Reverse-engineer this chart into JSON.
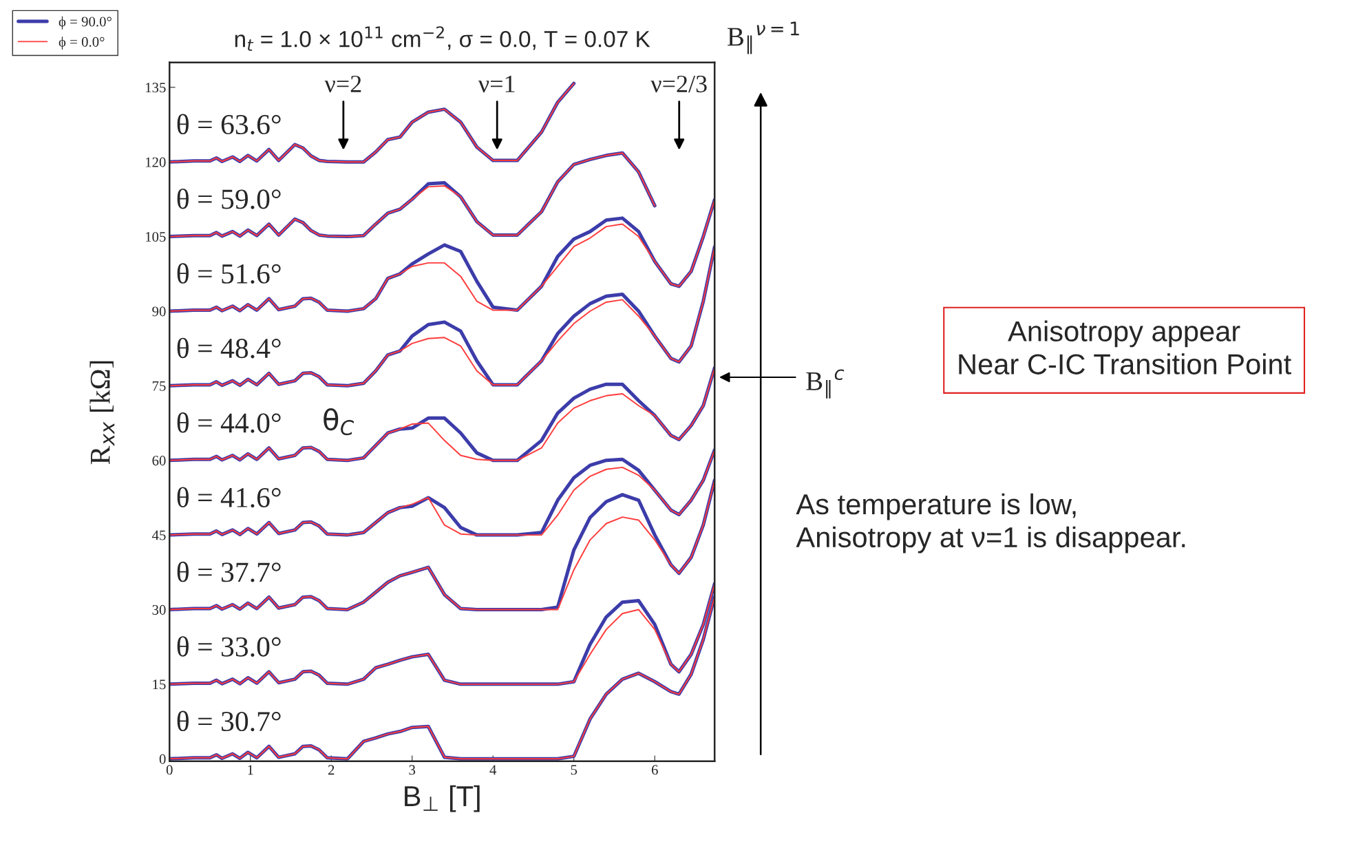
{
  "chart_data": {
    "type": "line",
    "title": "n$_{t}$ = 1.0 × 10$^{11}$ cm$^{−2}$, σ = 0.0, T = 0.07 K",
    "xlabel": "B$_{⊥}$ [T]",
    "ylabel": "R$_{xx}$ [kΩ]",
    "x": [
      0,
      0.3,
      0.5,
      0.58,
      0.65,
      0.78,
      0.87,
      0.97,
      1.08,
      1.23,
      1.35,
      1.55,
      1.65,
      1.75,
      1.85,
      1.95,
      2.2,
      2.4,
      2.55,
      2.7,
      2.85,
      3.0,
      3.2,
      3.4,
      3.6,
      3.8,
      4.0,
      4.3,
      4.6,
      4.8,
      5.0,
      5.2,
      5.4,
      5.6,
      5.8,
      6.0,
      6.2,
      6.3,
      6.45,
      6.6,
      6.74
    ],
    "xlim": [
      0,
      6.74
    ],
    "ylim": [
      -0.5,
      140
    ],
    "xticks": [
      0,
      1,
      2,
      3,
      4,
      5,
      6
    ],
    "yticks": [
      0,
      15,
      30,
      45,
      60,
      75,
      90,
      105,
      120,
      135
    ],
    "legend": "top left",
    "line_style": "solid",
    "series": [
      {
        "name": "ϕ = 0.0°",
        "color": "#ff3b3b",
        "values": [
          120,
          120.2,
          120.2,
          120.8,
          120.1,
          121,
          120.1,
          121.3,
          120.2,
          122.5,
          120.3,
          123.5,
          122.8,
          121.2,
          120.3,
          120.1,
          120,
          120,
          122,
          124.5,
          125,
          128,
          130,
          130.6,
          128,
          123,
          120.3,
          120.3,
          126,
          132,
          135.8,
          null,
          null,
          null,
          null,
          null,
          null,
          null,
          null,
          null,
          null
        ]
      },
      {
        "name": "ϕ = 90.0°",
        "color": "#3c3caa",
        "values": [
          120,
          120.2,
          120.2,
          120.8,
          120.1,
          121,
          120.1,
          121.3,
          120.2,
          122.5,
          120.3,
          123.5,
          122.8,
          121.2,
          120.3,
          120.1,
          120,
          120,
          122,
          124.5,
          125,
          128,
          130,
          130.6,
          128,
          123,
          120.3,
          120.3,
          126,
          132,
          135.8,
          null,
          null,
          null,
          null,
          null,
          null,
          null,
          null,
          null,
          null
        ]
      },
      {
        "color": "#ff3b3b",
        "values": [
          105,
          105.2,
          105.2,
          105.8,
          105.1,
          106,
          105.1,
          106.3,
          105.2,
          107.5,
          105.3,
          108.5,
          107.8,
          106.2,
          105.3,
          105.1,
          105,
          105.2,
          107.5,
          109.7,
          110.5,
          112.5,
          115,
          115.2,
          113,
          108,
          105.3,
          105.3,
          110,
          116,
          119.5,
          120.5,
          121.3,
          121.8,
          118,
          111.2,
          null,
          null,
          null,
          null,
          null
        ]
      },
      {
        "color": "#3c3caa",
        "values": [
          105,
          105.2,
          105.2,
          105.8,
          105.1,
          106,
          105.1,
          106.3,
          105.2,
          107.5,
          105.3,
          108.5,
          107.8,
          106.2,
          105.3,
          105.1,
          105,
          105.2,
          107.5,
          109.7,
          110.5,
          112.5,
          115.6,
          115.8,
          113,
          108,
          105.3,
          105.3,
          110,
          116,
          119.5,
          120.5,
          121.3,
          121.8,
          118,
          111.2,
          null,
          null,
          null,
          null,
          null
        ]
      },
      {
        "color": "#ff3b3b",
        "values": [
          90,
          90.2,
          90.2,
          90.8,
          90.1,
          91,
          90.1,
          91.3,
          90.2,
          92.5,
          90.3,
          91,
          92.5,
          92.6,
          91.8,
          90.2,
          90,
          90.5,
          92.5,
          96.6,
          97.5,
          99,
          99.7,
          99.7,
          97,
          92,
          90.2,
          90.2,
          95,
          99,
          103,
          104.7,
          107,
          107.5,
          105,
          100,
          95.5,
          95,
          98,
          105,
          112.4
        ]
      },
      {
        "color": "#3c3caa",
        "values": [
          90,
          90.2,
          90.2,
          90.8,
          90.1,
          91,
          90.1,
          91.3,
          90.2,
          92.5,
          90.3,
          91,
          92.5,
          92.6,
          91.8,
          90.2,
          90,
          90.5,
          92.5,
          96.6,
          97.5,
          99.5,
          101.5,
          103.3,
          102,
          96,
          90.8,
          90.2,
          95,
          101,
          104.5,
          106,
          108.3,
          108.7,
          106,
          100,
          95.5,
          95,
          98,
          105,
          112.4
        ]
      },
      {
        "color": "#ff3b3b",
        "values": [
          75,
          75.2,
          75.2,
          75.8,
          75.1,
          76,
          75.1,
          76.3,
          75.2,
          77.5,
          75.3,
          76,
          77.5,
          77.6,
          76.8,
          75.2,
          75,
          75.5,
          78,
          81.2,
          82,
          83.5,
          84.5,
          84.7,
          83,
          78,
          75.2,
          75.2,
          80,
          84,
          87.5,
          90,
          91.8,
          92.3,
          89,
          85,
          80.5,
          79.8,
          83,
          92,
          102.9
        ]
      },
      {
        "color": "#3c3caa",
        "values": [
          75,
          75.2,
          75.2,
          75.8,
          75.1,
          76,
          75.1,
          76.3,
          75.2,
          77.5,
          75.3,
          76,
          77.5,
          77.6,
          76.8,
          75.2,
          75,
          75.5,
          78,
          81.2,
          82,
          85,
          87.3,
          87.8,
          86,
          80,
          75.2,
          75.2,
          80,
          85.5,
          89,
          91.5,
          93,
          93.4,
          90,
          85,
          80.5,
          79.8,
          83,
          92,
          102.9
        ]
      },
      {
        "color": "#ff3b3b",
        "values": [
          60,
          60.2,
          60.2,
          60.8,
          60.1,
          61,
          60.1,
          61.3,
          60.2,
          62.5,
          60.3,
          61,
          62.5,
          62.6,
          61.8,
          60.2,
          60,
          60.5,
          63,
          65.5,
          66.3,
          67.3,
          67.5,
          64,
          61,
          60.2,
          60,
          60,
          62.5,
          67.5,
          70.5,
          72,
          73,
          73.4,
          71,
          69,
          65,
          64.2,
          67,
          71,
          78.6
        ]
      },
      {
        "color": "#3c3caa",
        "values": [
          60,
          60.2,
          60.2,
          60.8,
          60.1,
          61,
          60.1,
          61.3,
          60.2,
          62.5,
          60.3,
          61,
          62.5,
          62.6,
          61.8,
          60.2,
          60,
          60.5,
          63,
          65.5,
          66.3,
          66.5,
          68.5,
          68.5,
          65.5,
          61.5,
          60,
          60,
          64,
          69.5,
          72.5,
          74.3,
          75.3,
          75.3,
          72,
          69,
          65,
          64.2,
          67,
          71,
          78.6
        ]
      },
      {
        "color": "#ff3b3b",
        "values": [
          45,
          45.2,
          45.2,
          45.8,
          45.1,
          46,
          45.1,
          46.3,
          45.2,
          47.5,
          45.3,
          46,
          47.5,
          47.6,
          46.8,
          45.2,
          45,
          45.5,
          47.5,
          49.5,
          50.5,
          51.2,
          52.5,
          47,
          45.2,
          45,
          45,
          45,
          45,
          49,
          54,
          56.8,
          58.2,
          58.6,
          57,
          54,
          50,
          49.1,
          52,
          56,
          62.1
        ]
      },
      {
        "color": "#3c3caa",
        "values": [
          45,
          45.2,
          45.2,
          45.8,
          45.1,
          46,
          45.1,
          46.3,
          45.2,
          47.5,
          45.3,
          46,
          47.5,
          47.6,
          46.8,
          45.2,
          45,
          45.5,
          47.5,
          49.5,
          50.5,
          50.8,
          52.5,
          50.5,
          46.5,
          45,
          45,
          45,
          45.5,
          52,
          56.5,
          59,
          60,
          60.2,
          58,
          54,
          50,
          49.1,
          52,
          56,
          62.1
        ]
      },
      {
        "color": "#ff3b3b",
        "values": [
          30,
          30.2,
          30.2,
          30.8,
          30.1,
          31,
          30.1,
          31.3,
          30.2,
          32.5,
          30.3,
          31,
          32.5,
          32.6,
          31.8,
          30.2,
          30,
          31.5,
          33.5,
          35.5,
          36.8,
          37.5,
          38.5,
          33,
          30.2,
          30,
          30,
          30,
          30,
          30,
          38,
          44,
          47.3,
          48.6,
          48,
          44,
          39,
          37.3,
          40.5,
          47,
          56
        ]
      },
      {
        "color": "#3c3caa",
        "values": [
          30,
          30.2,
          30.2,
          30.8,
          30.1,
          31,
          30.1,
          31.3,
          30.2,
          32.5,
          30.3,
          31,
          32.5,
          32.6,
          31.8,
          30.2,
          30,
          31.5,
          33.5,
          35.5,
          36.8,
          37.5,
          38.5,
          33,
          30.2,
          30,
          30,
          30,
          30,
          30.5,
          42,
          48.5,
          51.7,
          53.1,
          52,
          45,
          39,
          37.3,
          40.5,
          47,
          56
        ]
      },
      {
        "color": "#ff3b3b",
        "values": [
          15,
          15.2,
          15.2,
          15.8,
          15.1,
          16,
          15.1,
          16.3,
          15.2,
          17.5,
          15.3,
          16,
          17.5,
          17.6,
          16.8,
          15.2,
          15,
          16,
          18.3,
          19,
          19.8,
          20.5,
          21,
          15.8,
          15,
          15,
          15,
          15,
          15,
          15,
          15.5,
          21,
          26,
          29.2,
          30,
          26,
          19,
          17.5,
          21,
          27,
          35.2
        ]
      },
      {
        "color": "#3c3caa",
        "values": [
          15,
          15.2,
          15.2,
          15.8,
          15.1,
          16,
          15.1,
          16.3,
          15.2,
          17.5,
          15.3,
          16,
          17.5,
          17.6,
          16.8,
          15.2,
          15,
          16,
          18.3,
          19,
          19.8,
          20.5,
          21,
          15.8,
          15,
          15,
          15,
          15,
          15,
          15,
          15.5,
          23,
          28.5,
          31.5,
          31.8,
          27,
          19,
          17.5,
          21,
          27,
          35.2
        ]
      },
      {
        "color": "#ff3b3b",
        "values": [
          0,
          0.2,
          0.2,
          0.8,
          0.1,
          1,
          0.1,
          1.3,
          0.2,
          2.5,
          0.3,
          1,
          2.5,
          2.6,
          1.8,
          0.2,
          0,
          3.5,
          4.2,
          5,
          5.5,
          6.3,
          6.5,
          0.3,
          0,
          0,
          0,
          0,
          0,
          0,
          0.5,
          8,
          13,
          16,
          17.2,
          15.5,
          13.5,
          13,
          17,
          24,
          32.6
        ]
      },
      {
        "color": "#3c3caa",
        "values": [
          0,
          0.2,
          0.2,
          0.8,
          0.1,
          1,
          0.1,
          1.3,
          0.2,
          2.5,
          0.3,
          1,
          2.5,
          2.6,
          1.8,
          0.2,
          0,
          3.5,
          4.2,
          5,
          5.5,
          6.3,
          6.5,
          0.3,
          0,
          0,
          0,
          0,
          0,
          0,
          0.5,
          8,
          13,
          16,
          17.2,
          15.5,
          13.5,
          13,
          17,
          24,
          32.6
        ]
      }
    ],
    "annotations": [
      "θ = 63.6°",
      "θ = 59.0°",
      "θ = 51.6°",
      "θ = 48.4°",
      "θ = 44.0°",
      "θ = 41.6°",
      "θ = 37.7°",
      "θ = 33.0°",
      "θ = 30.7°",
      "ν=2",
      "ν=1",
      "ν=2/3",
      "θ$_{C}$",
      "B$_{∥}$$^{ν=1}$",
      "B$_{∥}$$^{c}$",
      "Anisotropy appear\nNear C-IC Transition Point",
      "As temperature is low,\nAnisotropy at ν=1 is disappear."
    ]
  }
}
